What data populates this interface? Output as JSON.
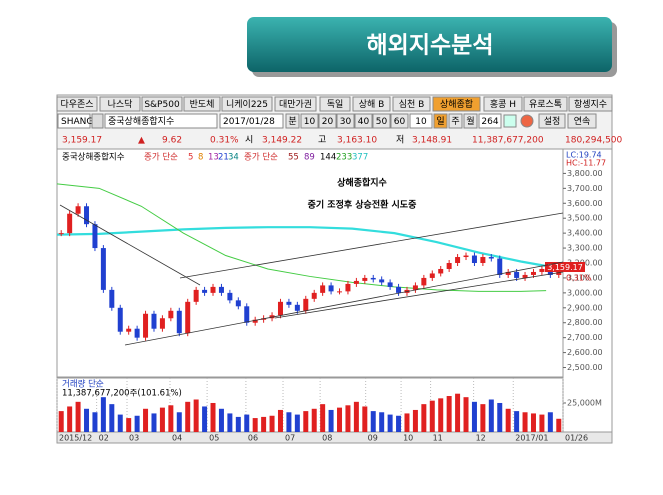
{
  "title": "해외지수분석",
  "toolbar": {
    "markets": [
      "다우존스",
      "나스닥",
      "S&P500",
      "반도체",
      "니케이225",
      "대만가권",
      "독일",
      "상해 B",
      "심천 B",
      "상해종합",
      "홍콩 H",
      "유로스톡",
      "항셍지수"
    ],
    "selected": 9
  },
  "controls": {
    "symbol": "SHANG",
    "name": "중국상해종합지수",
    "date": "2017/01/28",
    "unit": "분",
    "minutes": [
      "10",
      "20",
      "30",
      "40",
      "50",
      "60"
    ],
    "count": "10",
    "periods": [
      "일",
      "주",
      "월"
    ],
    "selected_period": 0,
    "bars": "264",
    "settings": "설정",
    "continuous": "연속"
  },
  "quote": {
    "close": "3,159.17",
    "arrow": "▲",
    "change": "9.62",
    "pct": "0.31%",
    "open_label": "시",
    "open": "3,149.22",
    "high_label": "고",
    "high": "3,163.10",
    "low_label": "저",
    "low": "3,148.91",
    "volume": "11,387,677,200",
    "amount": "180,294,500"
  },
  "chart_data": {
    "type": "candlestick",
    "legend": {
      "name": "중국상해종합지수",
      "ma1_label": "종가 단순",
      "ma1_periods": [
        "5",
        "8",
        "13",
        "21",
        "34"
      ],
      "ma2_label": "종가 단순",
      "ma2_periods": [
        "55",
        "89",
        "144",
        "233",
        "377"
      ]
    },
    "annotations": [
      "상해종합지수",
      "중기 조정후 상승전환 시도중"
    ],
    "lc": "LC:19.74",
    "hc": "HC:-11.77",
    "last_label": "3,159.17",
    "last_pct": "0.31%",
    "closes": [
      3400,
      3530,
      3580,
      3460,
      3300,
      3020,
      2900,
      2740,
      2760,
      2700,
      2860,
      2760,
      2830,
      2880,
      2730,
      2940,
      3020,
      3000,
      3040,
      3000,
      2950,
      2910,
      2800,
      2820,
      2830,
      2850,
      2940,
      2920,
      2880,
      2960,
      3000,
      3050,
      3010,
      3010,
      3060,
      3080,
      3100,
      3090,
      3070,
      3040,
      3000,
      3020,
      3050,
      3100,
      3130,
      3160,
      3200,
      3240,
      3250,
      3200,
      3240,
      3230,
      3120,
      3140,
      3100,
      3120,
      3140,
      3160,
      3120,
      3159.17
    ],
    "ma_lines": [
      {
        "color": "#33dddd",
        "x": [
          0,
          5,
          10,
          15,
          20,
          25,
          30,
          35,
          40,
          45,
          50,
          55,
          58
        ],
        "values": [
          3390,
          3395,
          3410,
          3425,
          3435,
          3440,
          3440,
          3430,
          3400,
          3340,
          3270,
          3210,
          3180
        ]
      },
      {
        "color": "#44cc44",
        "x": [
          0,
          5,
          10,
          15,
          20,
          25,
          30,
          35,
          40,
          45,
          50,
          55,
          58
        ],
        "values": [
          3730,
          3700,
          3580,
          3400,
          3250,
          3160,
          3110,
          3070,
          3040,
          3020,
          3010,
          3010,
          3015
        ]
      }
    ],
    "ylim": [
      2450,
      3940
    ],
    "yticks": [
      {
        "value": 3800,
        "label": "3,800.00"
      },
      {
        "value": 3700,
        "label": "3,700.00"
      },
      {
        "value": 3600,
        "label": "3,600.00"
      },
      {
        "value": 3500,
        "label": "3,500.00"
      },
      {
        "value": 3400,
        "label": "3,400.00"
      },
      {
        "value": 3300,
        "label": "3,300.00"
      },
      {
        "value": 3200,
        "label": "3,200.00"
      },
      {
        "value": 3100,
        "label": "3,100.00"
      },
      {
        "value": 3000,
        "label": "3,000.00"
      },
      {
        "value": 2900,
        "label": "2,900.00"
      },
      {
        "value": 2800,
        "label": "2,800.00"
      },
      {
        "value": 2700,
        "label": "2,700.00"
      },
      {
        "value": 2600,
        "label": "2,600.00"
      },
      {
        "value": 2500,
        "label": "2,500.00"
      }
    ],
    "xlim": [
      0,
      60
    ],
    "xticks": [
      {
        "value": 0,
        "label": "2015/12"
      },
      {
        "value": 4.7,
        "label": "02"
      },
      {
        "value": 8.3,
        "label": "03"
      },
      {
        "value": 13.4,
        "label": "04"
      },
      {
        "value": 17.8,
        "label": "05"
      },
      {
        "value": 22.4,
        "label": "06"
      },
      {
        "value": 26.8,
        "label": "07"
      },
      {
        "value": 31.2,
        "label": "08"
      },
      {
        "value": 36.6,
        "label": "09"
      },
      {
        "value": 40.8,
        "label": "10"
      },
      {
        "value": 44.3,
        "label": "11"
      },
      {
        "value": 49.4,
        "label": "12"
      },
      {
        "value": 54.1,
        "label": "2017/01"
      },
      {
        "value": 60,
        "label": "01/26"
      }
    ],
    "volume_label": "거래량 단순",
    "volume_info": "11,387,677,200주(101.61%)",
    "volumes": [
      18000,
      22000,
      26000,
      20000,
      17000,
      30000,
      24000,
      15000,
      12000,
      14000,
      20000,
      16000,
      21000,
      23000,
      17000,
      26000,
      28000,
      22000,
      25000,
      20000,
      16000,
      13000,
      15000,
      12000,
      13000,
      14000,
      19000,
      17000,
      15000,
      18000,
      20000,
      24000,
      19000,
      21000,
      23000,
      26000,
      22000,
      18000,
      17000,
      15000,
      14000,
      16000,
      19000,
      24000,
      27000,
      29000,
      31000,
      33000,
      30000,
      26000,
      24000,
      28000,
      25000,
      20000,
      18000,
      17000,
      16000,
      15000,
      17000,
      11388
    ],
    "vlim": [
      0,
      44800
    ],
    "vticks": [
      {
        "value": 25000,
        "label": "25,000M"
      }
    ]
  }
}
